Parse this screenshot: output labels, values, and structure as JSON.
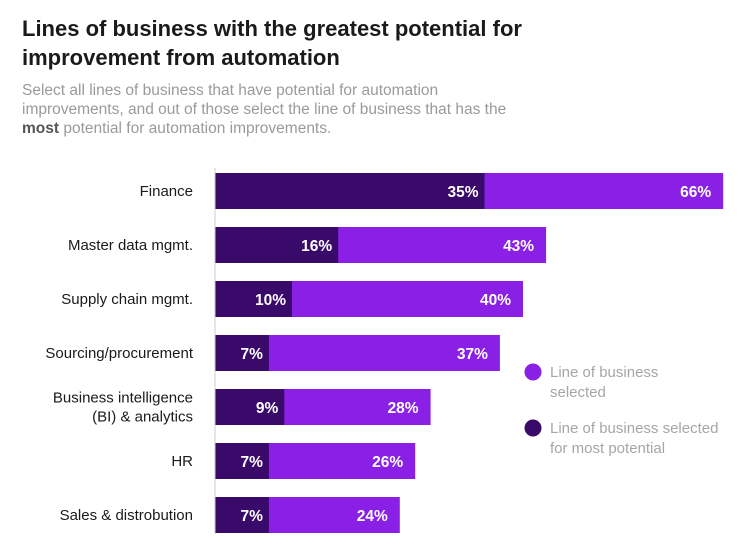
{
  "header": {
    "title": "Lines of business with the greatest potential for improvement from automation",
    "subtitle_part1": "Select all lines of business that have potential for automation improvements, and out of those select the line of business that has the ",
    "subtitle_bold": "most",
    "subtitle_part2": " potential for automation improvements."
  },
  "chart_data": {
    "type": "bar",
    "orientation": "horizontal",
    "categories": [
      [
        "Finance"
      ],
      [
        "Master data mgmt."
      ],
      [
        "Supply chain mgmt."
      ],
      [
        "Sourcing/procurement"
      ],
      [
        "Business intelligence",
        "(BI) & analytics"
      ],
      [
        "HR"
      ],
      [
        "Sales & distrobution"
      ]
    ],
    "series": [
      {
        "name": "Line of business selected",
        "values": [
          66,
          43,
          40,
          37,
          28,
          26,
          24
        ],
        "color": "#8a20e6"
      },
      {
        "name": "Line of business selected for most potential",
        "values": [
          35,
          16,
          10,
          7,
          9,
          7,
          7
        ],
        "color": "#3a0a6b"
      }
    ],
    "value_suffix": "%",
    "legend_position": "right",
    "legend": [
      {
        "lines": [
          "Line of business",
          "selected"
        ],
        "color": "#8a20e6"
      },
      {
        "lines": [
          "Line of business selected",
          "for most potential"
        ],
        "color": "#3a0a6b"
      }
    ]
  }
}
